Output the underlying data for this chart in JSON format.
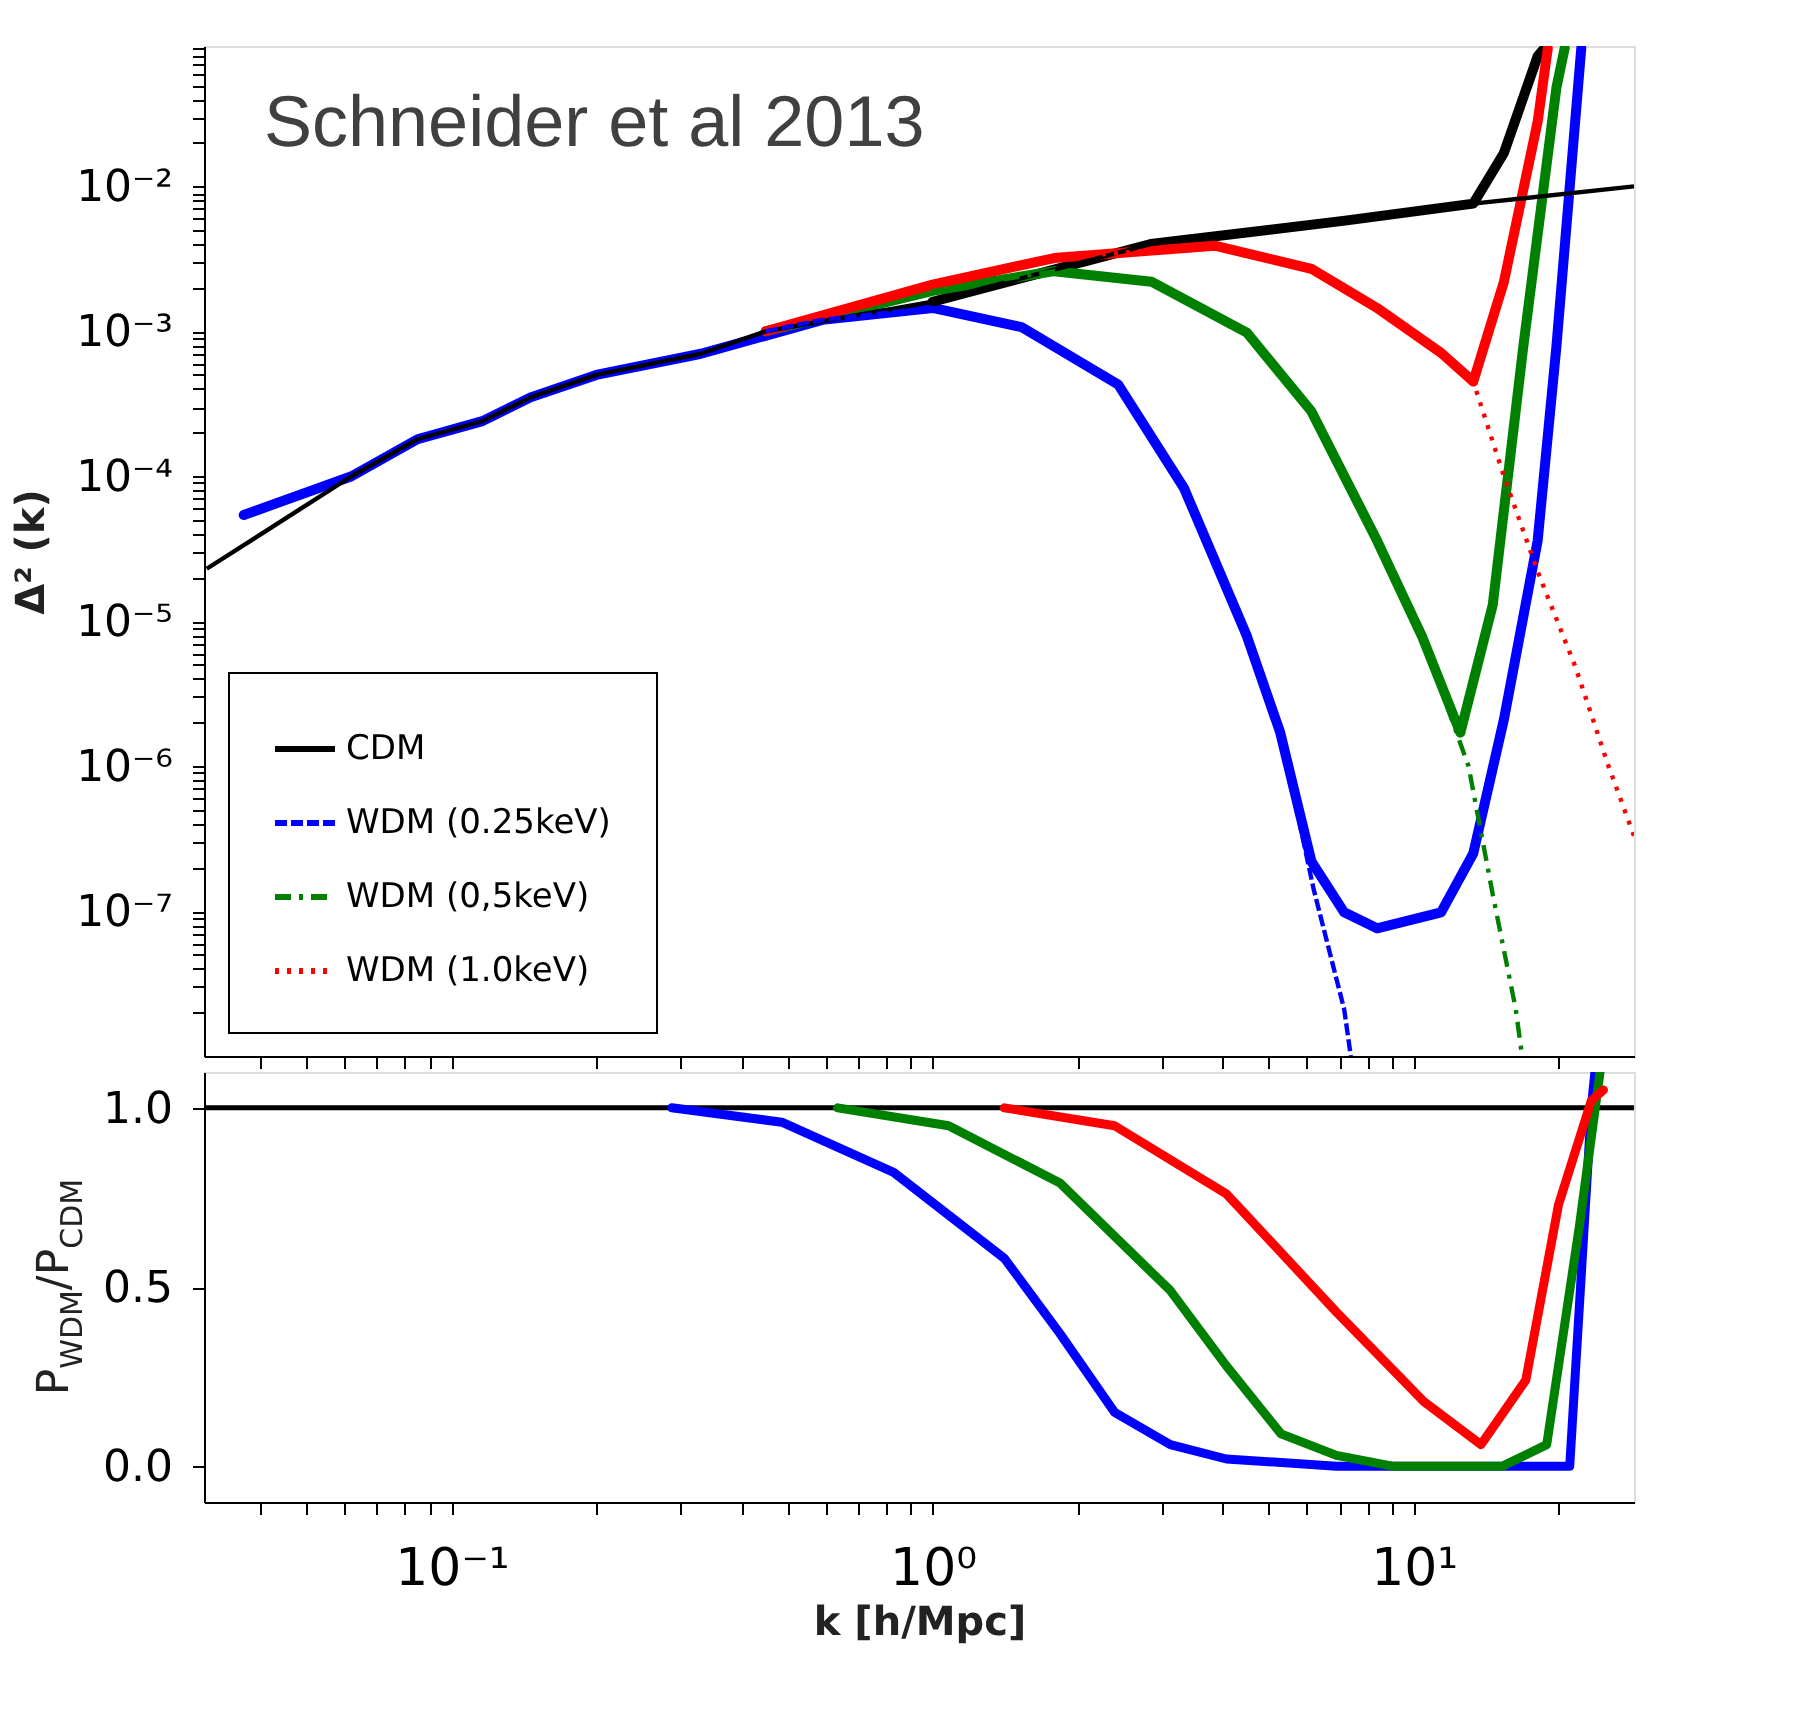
{
  "chart_data": [
    {
      "type": "line",
      "ylabel": "Δ² (k)",
      "annotations": [
        "Schneider et al 2013"
      ],
      "log": "xy",
      "grid": false,
      "legend": "bottom left",
      "tick_labels": "y",
      "xlim": [
        0.0306,
        28.7
      ],
      "ylim": [
        1e-08,
        0.093
      ],
      "xticks": [
        {
          "value": 0.04,
          "label": null
        },
        {
          "value": 0.05,
          "label": null
        },
        {
          "value": 0.06,
          "label": null
        },
        {
          "value": 0.07,
          "label": null
        },
        {
          "value": 0.08,
          "label": null
        },
        {
          "value": 0.09,
          "label": null
        },
        {
          "value": 0.1,
          "label": null
        },
        {
          "value": 0.2,
          "label": null
        },
        {
          "value": 0.3,
          "label": null
        },
        {
          "value": 0.4,
          "label": null
        },
        {
          "value": 0.5,
          "label": null
        },
        {
          "value": 0.6,
          "label": null
        },
        {
          "value": 0.7,
          "label": null
        },
        {
          "value": 0.8,
          "label": null
        },
        {
          "value": 0.9,
          "label": null
        },
        {
          "value": 1,
          "label": null
        },
        {
          "value": 2,
          "label": null
        },
        {
          "value": 3,
          "label": null
        },
        {
          "value": 4,
          "label": null
        },
        {
          "value": 5,
          "label": null
        },
        {
          "value": 6,
          "label": null
        },
        {
          "value": 7,
          "label": null
        },
        {
          "value": 8,
          "label": null
        },
        {
          "value": 9,
          "label": null
        },
        {
          "value": 10,
          "label": null
        },
        {
          "value": 20,
          "label": null
        }
      ],
      "yticks": [
        {
          "value": 2e-08,
          "label": null
        },
        {
          "value": 3e-08,
          "label": null
        },
        {
          "value": 4e-08,
          "label": null
        },
        {
          "value": 5e-08,
          "label": null
        },
        {
          "value": 6e-08,
          "label": null
        },
        {
          "value": 7e-08,
          "label": null
        },
        {
          "value": 8e-08,
          "label": null
        },
        {
          "value": 9e-08,
          "label": null
        },
        {
          "value": 1e-07,
          "label": "10⁻⁷"
        },
        {
          "value": 2e-07,
          "label": null
        },
        {
          "value": 3e-07,
          "label": null
        },
        {
          "value": 4e-07,
          "label": null
        },
        {
          "value": 5e-07,
          "label": null
        },
        {
          "value": 6e-07,
          "label": null
        },
        {
          "value": 7e-07,
          "label": null
        },
        {
          "value": 8e-07,
          "label": null
        },
        {
          "value": 9e-07,
          "label": null
        },
        {
          "value": 1e-06,
          "label": "10⁻⁶"
        },
        {
          "value": 2e-06,
          "label": null
        },
        {
          "value": 3e-06,
          "label": null
        },
        {
          "value": 4e-06,
          "label": null
        },
        {
          "value": 5e-06,
          "label": null
        },
        {
          "value": 6e-06,
          "label": null
        },
        {
          "value": 7e-06,
          "label": null
        },
        {
          "value": 8e-06,
          "label": null
        },
        {
          "value": 9e-06,
          "label": null
        },
        {
          "value": 1e-05,
          "label": "10⁻⁵"
        },
        {
          "value": 2e-05,
          "label": null
        },
        {
          "value": 3e-05,
          "label": null
        },
        {
          "value": 4e-05,
          "label": null
        },
        {
          "value": 5e-05,
          "label": null
        },
        {
          "value": 6e-05,
          "label": null
        },
        {
          "value": 7e-05,
          "label": null
        },
        {
          "value": 8e-05,
          "label": null
        },
        {
          "value": 9e-05,
          "label": null
        },
        {
          "value": 0.0001,
          "label": "10⁻⁴"
        },
        {
          "value": 0.0002,
          "label": null
        },
        {
          "value": 0.0003,
          "label": null
        },
        {
          "value": 0.0004,
          "label": null
        },
        {
          "value": 0.0005,
          "label": null
        },
        {
          "value": 0.0006,
          "label": null
        },
        {
          "value": 0.0007,
          "label": null
        },
        {
          "value": 0.0008,
          "label": null
        },
        {
          "value": 0.0009,
          "label": null
        },
        {
          "value": 0.001,
          "label": "10⁻³"
        },
        {
          "value": 0.002,
          "label": null
        },
        {
          "value": 0.003,
          "label": null
        },
        {
          "value": 0.004,
          "label": null
        },
        {
          "value": 0.005,
          "label": null
        },
        {
          "value": 0.006,
          "label": null
        },
        {
          "value": 0.007,
          "label": null
        },
        {
          "value": 0.008,
          "label": null
        },
        {
          "value": 0.009,
          "label": null
        },
        {
          "value": 0.01,
          "label": "10⁻²"
        },
        {
          "value": 0.02,
          "label": null
        },
        {
          "value": 0.03,
          "label": null
        },
        {
          "value": 0.04,
          "label": null
        },
        {
          "value": 0.05,
          "label": null
        },
        {
          "value": 0.06,
          "label": null
        },
        {
          "value": 0.07,
          "label": null
        },
        {
          "value": 0.08,
          "label": null
        },
        {
          "value": 0.09,
          "label": null
        }
      ],
      "series": [
        {
          "name": "CDM",
          "color": "#000000",
          "line_style": "solid",
          "x": [
            0.031,
            0.062,
            0.085,
            0.116,
            0.146,
            0.2,
            0.33,
            0.45,
            1.0,
            2.84,
            7.2,
            13.3,
            28.7
          ],
          "values": [
            2.3e-05,
            0.0001,
            0.00018,
            0.00024,
            0.00035,
            0.0005,
            0.0007,
            0.001,
            0.0016,
            0.004,
            0.0058,
            0.0076,
            0.01
          ]
        },
        {
          "name": "WDM (0.25keV)",
          "color": "#0000ff",
          "line_style": "dashed",
          "x": [
            0.45,
            0.59,
            1.0,
            1.53,
            2.43,
            3.33,
            4.5,
            5.28,
            6.2,
            7.17,
            7.4
          ],
          "values": [
            0.001,
            0.0012,
            0.00145,
            0.00107,
            0.00043,
            8.3e-05,
            7.9e-06,
            1.7e-06,
            1.4e-07,
            2.1e-08,
            1e-08
          ]
        },
        {
          "name": "WDM (0,5keV)",
          "color": "#008000",
          "line_style": "dashdot",
          "x": [
            1.0,
            1.79,
            2.85,
            4.5,
            6.13,
            8.39,
            10.4,
            13.0,
            14.6,
            16.3,
            16.8
          ],
          "values": [
            0.0019,
            0.0026,
            0.0022,
            0.00098,
            0.00028,
            3.6e-05,
            7.9e-06,
            1e-06,
            1.3e-07,
            2.1e-08,
            1e-08
          ]
        },
        {
          "name": "WDM (1.0keV)",
          "color": "#ff0000",
          "line_style": "dotted",
          "x": [
            1.79,
            3.86,
            6.13,
            8.39,
            11.4,
            13.3,
            15.4,
            18.1,
            21.7,
            25.4,
            28.7
          ],
          "values": [
            0.0032,
            0.0039,
            0.0027,
            0.00145,
            0.00071,
            0.00045,
            0.0001,
            2.2e-05,
            4.8e-06,
            1e-06,
            3.3e-07
          ]
        },
        {
          "color": "#0000ff",
          "line_style": "solid",
          "x": [
            0.037,
            0.062,
            0.085,
            0.116,
            0.146,
            0.2,
            0.33,
            0.59,
            1.0,
            1.53,
            2.43,
            3.33,
            4.5,
            5.28,
            6.13,
            7.17,
            8.39,
            11.4,
            13.3,
            15.4,
            18.1,
            19.8,
            22.3
          ],
          "values": [
            5.4e-05,
            0.0001,
            0.00018,
            0.00024,
            0.00035,
            0.0005,
            0.0007,
            0.0012,
            0.00145,
            0.00107,
            0.00043,
            8.3e-05,
            7.9e-06,
            1.7e-06,
            2.2e-07,
            9.8e-08,
            7.6e-08,
            9.8e-08,
            2.5e-07,
            2.1e-06,
            3.6e-05,
            0.00079,
            0.09
          ]
        },
        {
          "color": "#000000",
          "line_style": "solid",
          "x": [
            1.0,
            2.84,
            7.2,
            13.3,
            15.4,
            18.1,
            18.7
          ],
          "values": [
            0.0016,
            0.004,
            0.0058,
            0.0076,
            0.017,
            0.079,
            0.09
          ]
        },
        {
          "color": "#008000",
          "line_style": "solid",
          "x": [
            0.45,
            1.0,
            1.79,
            2.85,
            4.5,
            6.13,
            8.39,
            10.4,
            12.5,
            14.6,
            16.9,
            19.8,
            20.6
          ],
          "values": [
            0.001,
            0.0019,
            0.0026,
            0.0022,
            0.00098,
            0.00028,
            3.6e-05,
            7.9e-06,
            1.7e-06,
            1.3e-05,
            0.00079,
            0.048,
            0.09
          ]
        },
        {
          "color": "#ff0000",
          "line_style": "solid",
          "x": [
            0.45,
            1.0,
            1.79,
            3.86,
            6.13,
            8.39,
            11.4,
            13.3,
            15.4,
            18.1,
            19.0
          ],
          "values": [
            0.001,
            0.0021,
            0.0032,
            0.0039,
            0.0027,
            0.00145,
            0.00071,
            0.00045,
            0.0022,
            0.028,
            0.09
          ]
        }
      ]
    },
    {
      "type": "line",
      "xlabel": "k [h/Mpc]",
      "ylabel": "P$_{WDM}$/P$_{CDM}$",
      "log": "x",
      "grid": false,
      "xlim": [
        0.0306,
        28.7
      ],
      "ylim": [
        -0.1,
        1.1
      ],
      "xticks": [
        {
          "value": 0.04,
          "label": null
        },
        {
          "value": 0.05,
          "label": null
        },
        {
          "value": 0.06,
          "label": null
        },
        {
          "value": 0.07,
          "label": null
        },
        {
          "value": 0.08,
          "label": null
        },
        {
          "value": 0.09,
          "label": null
        },
        {
          "value": 0.1,
          "label": "10⁻¹"
        },
        {
          "value": 0.2,
          "label": null
        },
        {
          "value": 0.3,
          "label": null
        },
        {
          "value": 0.4,
          "label": null
        },
        {
          "value": 0.5,
          "label": null
        },
        {
          "value": 0.6,
          "label": null
        },
        {
          "value": 0.7,
          "label": null
        },
        {
          "value": 0.8,
          "label": null
        },
        {
          "value": 0.9,
          "label": null
        },
        {
          "value": 1,
          "label": "10⁰"
        },
        {
          "value": 2,
          "label": null
        },
        {
          "value": 3,
          "label": null
        },
        {
          "value": 4,
          "label": null
        },
        {
          "value": 5,
          "label": null
        },
        {
          "value": 6,
          "label": null
        },
        {
          "value": 7,
          "label": null
        },
        {
          "value": 8,
          "label": null
        },
        {
          "value": 9,
          "label": null
        },
        {
          "value": 10,
          "label": "10¹"
        },
        {
          "value": 20,
          "label": null
        }
      ],
      "yticks": [
        {
          "value": 0,
          "label": "0.0"
        },
        {
          "value": 0.5,
          "label": "0.5"
        },
        {
          "value": 1,
          "label": "1.0"
        }
      ],
      "series": [
        {
          "color": "#000000",
          "line_style": "solid",
          "x": [
            0.0306,
            28.7
          ],
          "values": [
            1,
            1
          ]
        },
        {
          "color": "#0000ff",
          "line_style": "solid",
          "x": [
            0.287,
            0.486,
            0.83,
            1.41,
            1.84,
            2.39,
            3.12,
            4.08,
            6.91,
            21.1,
            23.4,
            23.8
          ],
          "values": [
            1,
            0.96,
            0.82,
            0.58,
            0.37,
            0.15,
            0.06,
            0.02,
            0,
            0,
            1.0,
            1.1
          ]
        },
        {
          "color": "#008000",
          "line_style": "solid",
          "x": [
            0.635,
            1.08,
            1.84,
            3.12,
            4.08,
            5.3,
            6.91,
            9.03,
            15.3,
            18.9,
            22.1,
            24.4
          ],
          "values": [
            1,
            0.95,
            0.79,
            0.49,
            0.28,
            0.09,
            0.03,
            0,
            0,
            0.06,
            0.67,
            1.1
          ]
        },
        {
          "color": "#ff0000",
          "line_style": "solid",
          "x": [
            1.41,
            2.39,
            4.08,
            6.91,
            10.5,
            13.8,
            17.1,
            20.0,
            23.4,
            24.8
          ],
          "values": [
            1,
            0.95,
            0.76,
            0.43,
            0.18,
            0.06,
            0.24,
            0.73,
            1.02,
            1.05
          ]
        }
      ]
    }
  ]
}
